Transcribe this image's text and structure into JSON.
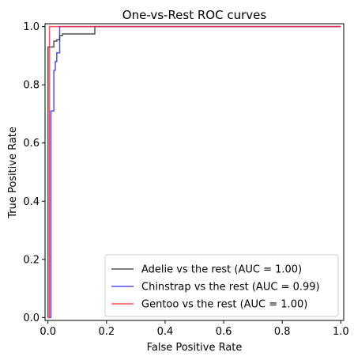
{
  "chart_data": {
    "type": "line",
    "title": "One-vs-Rest ROC curves",
    "xlabel": "False Positive Rate",
    "ylabel": "True Positive Rate",
    "xlim": [
      -0.01,
      1.01
    ],
    "ylim": [
      -0.01,
      1.01
    ],
    "xticks": [
      "0.0",
      "0.2",
      "0.4",
      "0.6",
      "0.8",
      "1.0"
    ],
    "yticks": [
      "0.0",
      "0.2",
      "0.4",
      "0.6",
      "0.8",
      "1.0"
    ],
    "xtick_values": [
      0,
      0.2,
      0.4,
      0.6,
      0.8,
      1.0
    ],
    "ytick_values": [
      0,
      0.2,
      0.4,
      0.6,
      0.8,
      1.0
    ],
    "grid": false,
    "legend_position": "bottom-right",
    "series": [
      {
        "name": "Adelie vs the rest (AUC = 1.00)",
        "color": "#333333",
        "x": [
          0,
          0,
          0,
          0.02,
          0.02,
          0.03,
          0.03,
          0.04,
          0.04,
          0.05,
          0.05,
          0.16,
          0.16,
          1.0
        ],
        "y": [
          0,
          0.025,
          0.93,
          0.93,
          0.95,
          0.95,
          0.955,
          0.955,
          0.97,
          0.97,
          0.975,
          0.975,
          1.0,
          1.0
        ]
      },
      {
        "name": "Chinstrap vs the rest (AUC = 0.99)",
        "color": "#3333ee",
        "x": [
          0,
          0,
          0.01,
          0.01,
          0.02,
          0.02,
          0.025,
          0.025,
          0.03,
          0.03,
          0.04,
          0.04,
          1.0
        ],
        "y": [
          0,
          0.0,
          0.0,
          0.71,
          0.71,
          0.85,
          0.85,
          0.88,
          0.88,
          0.91,
          0.91,
          1.0,
          1.0
        ]
      },
      {
        "name": "Gentoo vs the rest (AUC = 1.00)",
        "color": "#ff3333",
        "x": [
          0,
          0,
          0.005,
          0.005,
          1.0
        ],
        "y": [
          0,
          0.0,
          0.0,
          1.0,
          1.0
        ]
      }
    ]
  }
}
